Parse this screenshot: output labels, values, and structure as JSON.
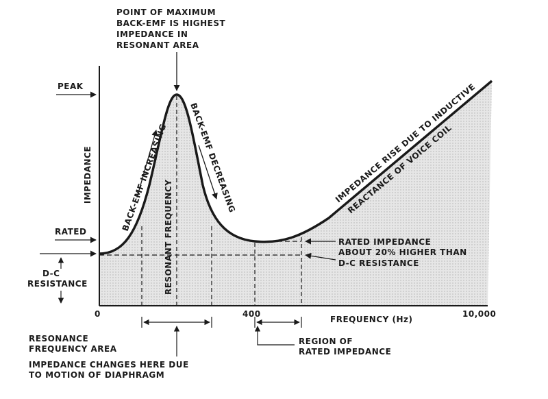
{
  "chart_data": {
    "type": "area",
    "xlabel": "FREQUENCY (Hz)",
    "ylabel": "IMPEDANCE",
    "x_ticks": [
      "0",
      "400",
      "10,000"
    ],
    "y_levels": [
      "PEAK",
      "RATED",
      "D-C RESISTANCE"
    ]
  },
  "labels": {
    "top_annotation": [
      "POINT OF MAXIMUM",
      "BACK-EMF IS HIGHEST",
      "IMPEDANCE IN",
      "RESONANT AREA"
    ],
    "peak": "PEAK",
    "rated": "RATED",
    "dc_resistance": [
      "D-C",
      "RESISTANCE"
    ],
    "back_emf_increasing": "BACK-EMF INCREASING",
    "back_emf_decreasing": "BACK-EMF DECREASING",
    "resonant_frequency": "RESONANT FREQUENCY",
    "rise_line1": "IMPEDANCE RISE DUE TO INDUCTIVE",
    "rise_line2": "REACTANCE OF VOICE COIL",
    "rated_note": [
      "RATED IMPEDANCE",
      "ABOUT 20% HIGHER THAN",
      "D-C RESISTANCE"
    ],
    "resonance_area": [
      "RESONANCE",
      "FREQUENCY AREA"
    ],
    "impedance_changes": [
      "IMPEDANCE CHANGES HERE DUE",
      "TO MOTION OF DIAPHRAGM"
    ],
    "rated_region": [
      "REGION OF",
      "RATED IMPEDANCE"
    ]
  },
  "colors": {
    "ink": "#1a1a1a",
    "shade": "#dcdcdc",
    "background": "#ffffff"
  }
}
